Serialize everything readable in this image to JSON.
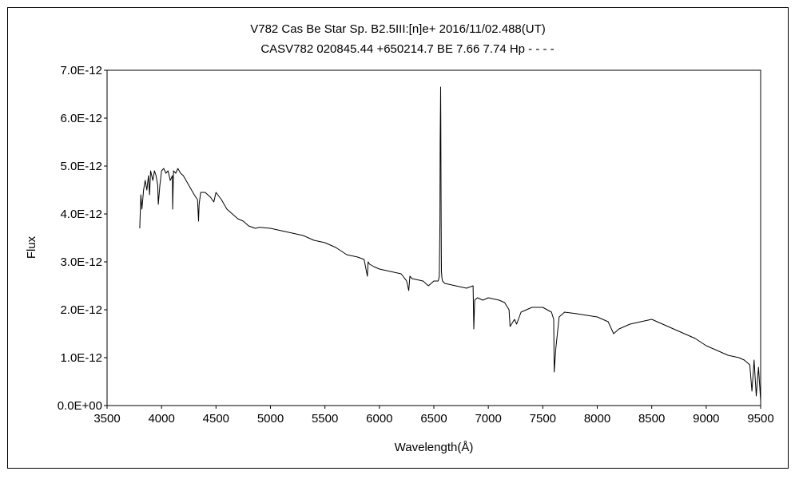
{
  "chart_data": {
    "type": "line",
    "title_line1": "V782 Cas    Be Star    Sp. B2.5III:[n]e+    2016/11/02.488(UT)",
    "title_line2": "CASV782 020845.44 +650214.7 BE 7.66 7.74 Hp - - - -",
    "xlabel": "Wavelength(Å)",
    "ylabel": "Flux",
    "xlim": [
      3500,
      9500
    ],
    "ylim": [
      0,
      7e-12
    ],
    "xticks": [
      "3500",
      "4000",
      "4500",
      "5000",
      "5500",
      "6000",
      "6500",
      "7000",
      "7500",
      "8000",
      "8500",
      "9000",
      "9500"
    ],
    "yticks": [
      "0.0E+00",
      "1.0E-12",
      "2.0E-12",
      "3.0E-12",
      "4.0E-12",
      "5.0E-12",
      "6.0E-12",
      "7.0E-12"
    ],
    "grid": false,
    "legend": "none",
    "colors": {
      "line": "#000000",
      "axis": "#000000"
    },
    "series": [
      {
        "x": [
          3800,
          3810,
          3820,
          3835,
          3850,
          3865,
          3880,
          3890,
          3900,
          3920,
          3935,
          3950,
          3965,
          3970,
          3985,
          4000,
          4020,
          4040,
          4060,
          4080,
          4100,
          4102,
          4110,
          4130,
          4150,
          4175,
          4200,
          4250,
          4300,
          4330,
          4340,
          4345,
          4360,
          4400,
          4450,
          4480,
          4500,
          4550,
          4600,
          4650,
          4700,
          4750,
          4800,
          4861,
          4900,
          5000,
          5100,
          5200,
          5300,
          5400,
          5500,
          5600,
          5700,
          5800,
          5860,
          5890,
          5896,
          5910,
          5950,
          6000,
          6100,
          6200,
          6250,
          6270,
          6280,
          6300,
          6400,
          6450,
          6500,
          6540,
          6550,
          6556,
          6558,
          6562,
          6564,
          6566,
          6568,
          6570,
          6575,
          6580,
          6600,
          6700,
          6800,
          6860,
          6867,
          6875,
          6900,
          6950,
          7000,
          7100,
          7150,
          7190,
          7200,
          7240,
          7260,
          7300,
          7400,
          7500,
          7580,
          7600,
          7605,
          7620,
          7650,
          7700,
          7800,
          8000,
          8100,
          8150,
          8200,
          8300,
          8400,
          8500,
          8600,
          8700,
          8800,
          8900,
          9000,
          9100,
          9200,
          9300,
          9350,
          9400,
          9420,
          9440,
          9460,
          9480,
          9500
        ],
        "y": [
          3.7e-12,
          4.4e-12,
          4.1e-12,
          4.5e-12,
          4.7e-12,
          4.5e-12,
          4.8e-12,
          4.4e-12,
          4.9e-12,
          4.7e-12,
          4.9e-12,
          4.8e-12,
          4.6e-12,
          4.2e-12,
          4.6e-12,
          4.9e-12,
          4.95e-12,
          4.85e-12,
          4.9e-12,
          4.7e-12,
          4.8e-12,
          4.1e-12,
          4.9e-12,
          4.85e-12,
          4.95e-12,
          4.85e-12,
          4.8e-12,
          4.6e-12,
          4.4e-12,
          4.3e-12,
          3.85e-12,
          4.2e-12,
          4.45e-12,
          4.45e-12,
          4.35e-12,
          4.25e-12,
          4.45e-12,
          4.3e-12,
          4.1e-12,
          4e-12,
          3.9e-12,
          3.85e-12,
          3.75e-12,
          3.7e-12,
          3.72e-12,
          3.7e-12,
          3.65e-12,
          3.6e-12,
          3.55e-12,
          3.45e-12,
          3.4e-12,
          3.3e-12,
          3.15e-12,
          3.1e-12,
          3.05e-12,
          2.7e-12,
          3e-12,
          2.95e-12,
          2.9e-12,
          2.85e-12,
          2.8e-12,
          2.75e-12,
          2.6e-12,
          2.4e-12,
          2.7e-12,
          2.65e-12,
          2.6e-12,
          2.5e-12,
          2.6e-12,
          2.6e-12,
          2.7e-12,
          3.8e-12,
          5.5e-12,
          6.65e-12,
          6e-12,
          4.5e-12,
          3.3e-12,
          2.8e-12,
          2.65e-12,
          2.6e-12,
          2.55e-12,
          2.5e-12,
          2.45e-12,
          2.5e-12,
          1.6e-12,
          2.2e-12,
          2.25e-12,
          2.2e-12,
          2.25e-12,
          2.2e-12,
          2.15e-12,
          2e-12,
          1.65e-12,
          1.8e-12,
          1.7e-12,
          1.95e-12,
          2.05e-12,
          2.05e-12,
          1.95e-12,
          1.8e-12,
          7e-13,
          1.2e-12,
          1.85e-12,
          1.95e-12,
          1.92e-12,
          1.85e-12,
          1.75e-12,
          1.5e-12,
          1.6e-12,
          1.7e-12,
          1.75e-12,
          1.8e-12,
          1.7e-12,
          1.6e-12,
          1.5e-12,
          1.4e-12,
          1.25e-12,
          1.15e-12,
          1.05e-12,
          1e-12,
          9.5e-13,
          8.5e-13,
          3e-13,
          9.5e-13,
          2e-13,
          8e-13,
          1e-13
        ]
      }
    ]
  }
}
